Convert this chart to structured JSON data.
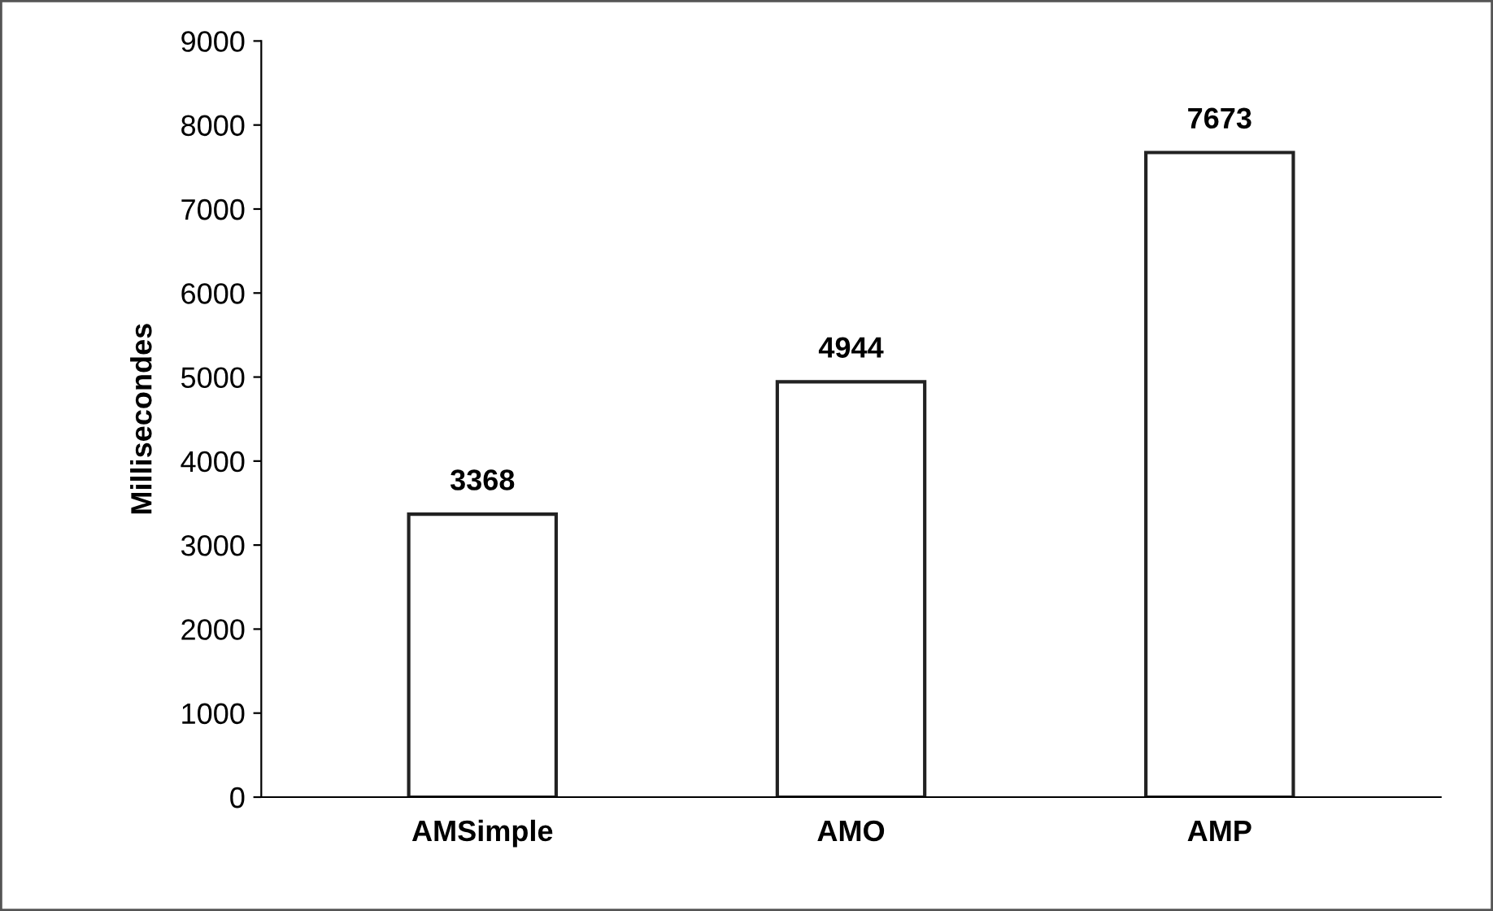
{
  "chart_data": {
    "type": "bar",
    "ylabel": "Millisecondes",
    "categories": [
      "AMSimple",
      "AMO",
      "AMP"
    ],
    "values": [
      3368,
      4944,
      7673
    ],
    "color": "#ffffff",
    "ylim": [
      0,
      9000
    ],
    "yticks": [
      0,
      1000,
      2000,
      3000,
      4000,
      5000,
      6000,
      7000,
      8000,
      9000
    ],
    "data_labels": true,
    "grid": false
  }
}
